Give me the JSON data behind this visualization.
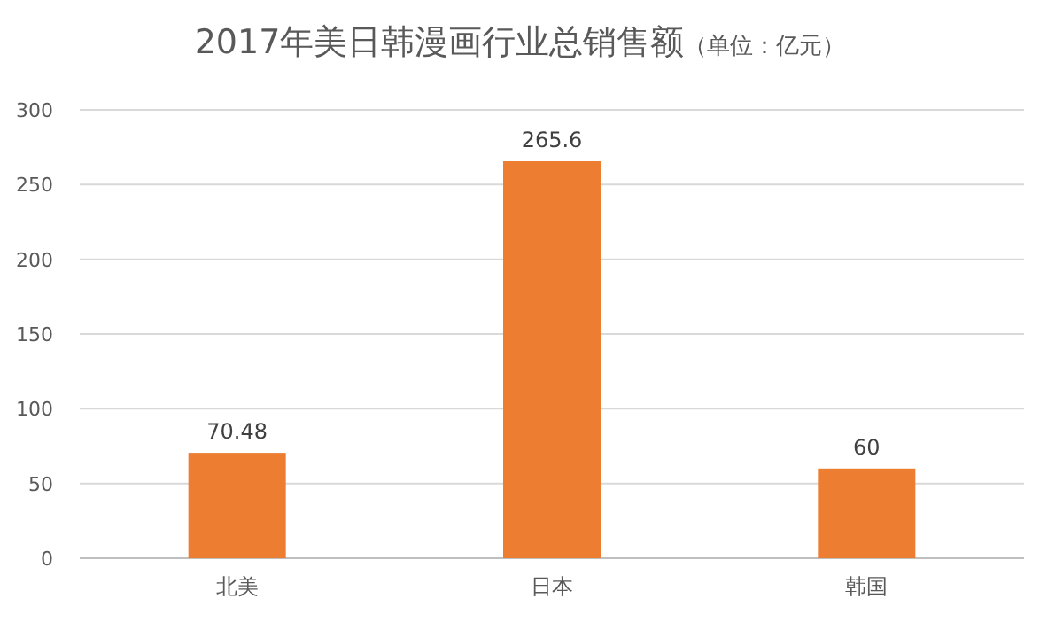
{
  "chart_data": {
    "type": "bar",
    "title": "2017年美日韩漫画行业总销售额",
    "subtitle": "（单位：亿元）",
    "categories": [
      "北美",
      "日本",
      "韩国"
    ],
    "values": [
      70.48,
      265.6,
      60
    ],
    "color": "#ed7d31",
    "ylim": [
      0,
      300
    ],
    "yticks": [
      0,
      50,
      100,
      150,
      200,
      250,
      300
    ],
    "grid": "y",
    "data_labels": true
  }
}
